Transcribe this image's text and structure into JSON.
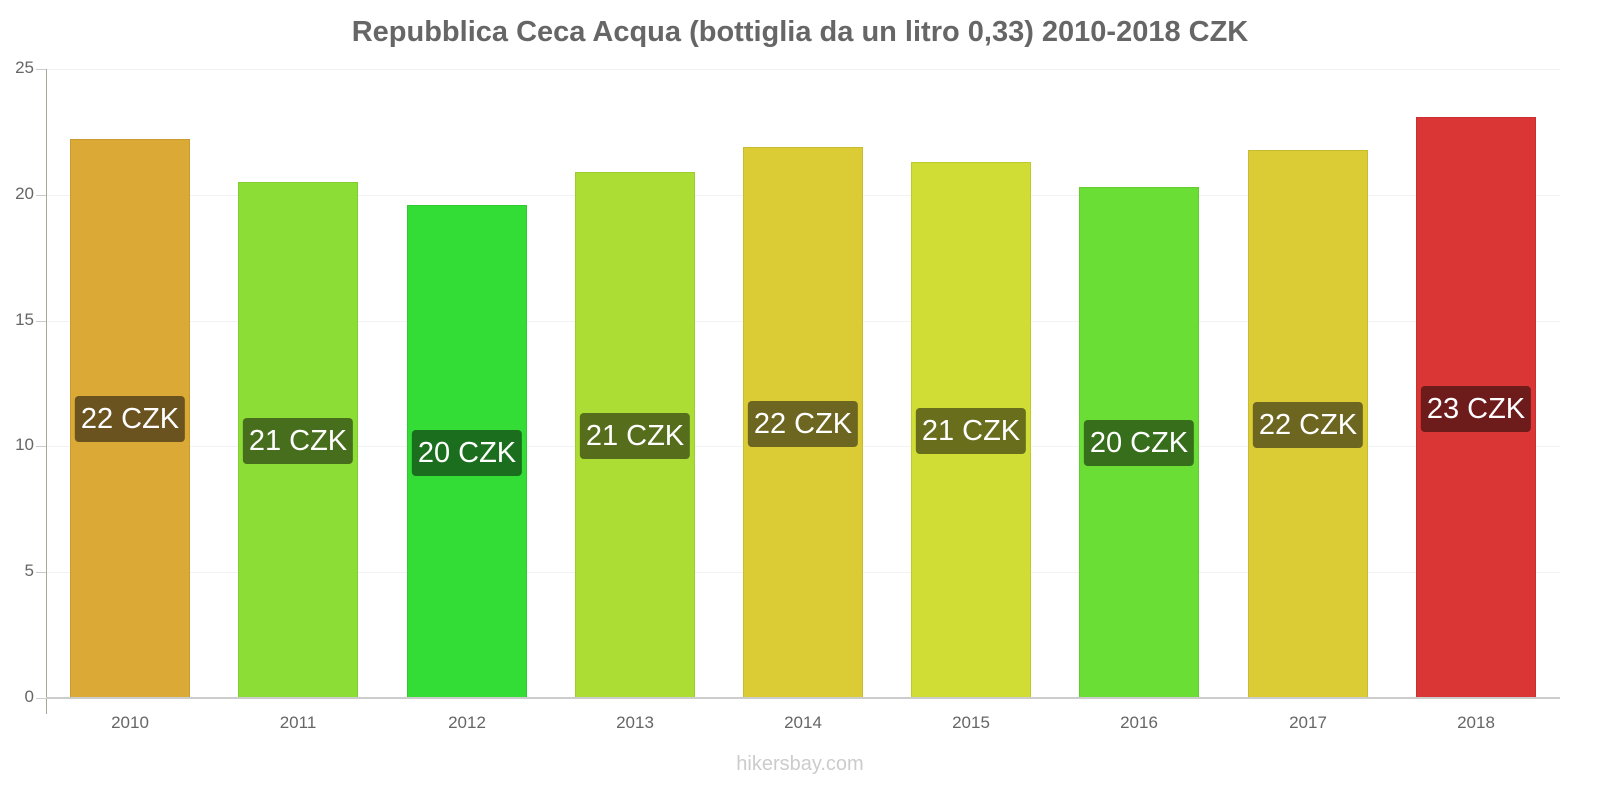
{
  "chart_data": {
    "type": "bar",
    "title": "Repubblica Ceca Acqua (bottiglia da un litro 0,33) 2010-2018 CZK",
    "xlabel": "",
    "ylabel": "",
    "ylim": [
      0,
      25
    ],
    "yticks": [
      0,
      5,
      10,
      15,
      20,
      25
    ],
    "grid": true,
    "legend": "none",
    "categories": [
      "2010",
      "2011",
      "2012",
      "2013",
      "2014",
      "2015",
      "2016",
      "2017",
      "2018"
    ],
    "values": [
      22.2,
      20.5,
      19.6,
      20.9,
      21.9,
      21.3,
      20.3,
      21.8,
      23.1
    ],
    "data_labels": [
      "22 CZK",
      "21 CZK",
      "20 CZK",
      "21 CZK",
      "22 CZK",
      "21 CZK",
      "20 CZK",
      "22 CZK",
      "23 CZK"
    ],
    "bar_colors": [
      "#dba935",
      "#8cde36",
      "#34dc36",
      "#acdd34",
      "#dbcb34",
      "#cfdd34",
      "#6bde36",
      "#dbcb34",
      "#db3636"
    ],
    "label_colors": [
      "#6b5320",
      "#466e1c",
      "#1b6e1d",
      "#566e1c",
      "#6d6620",
      "#686e1c",
      "#366e1c",
      "#6d6620",
      "#6e1b1b"
    ]
  },
  "title": "Repubblica Ceca Acqua (bottiglia da un litro 0,33) 2010-2018 CZK",
  "y_axis": {
    "ticks": [
      "0",
      "5",
      "10",
      "15",
      "20",
      "25"
    ]
  },
  "x_axis": {
    "ticks": [
      "2010",
      "2011",
      "2012",
      "2013",
      "2014",
      "2015",
      "2016",
      "2017",
      "2018"
    ]
  },
  "watermark": "hikersbay.com"
}
